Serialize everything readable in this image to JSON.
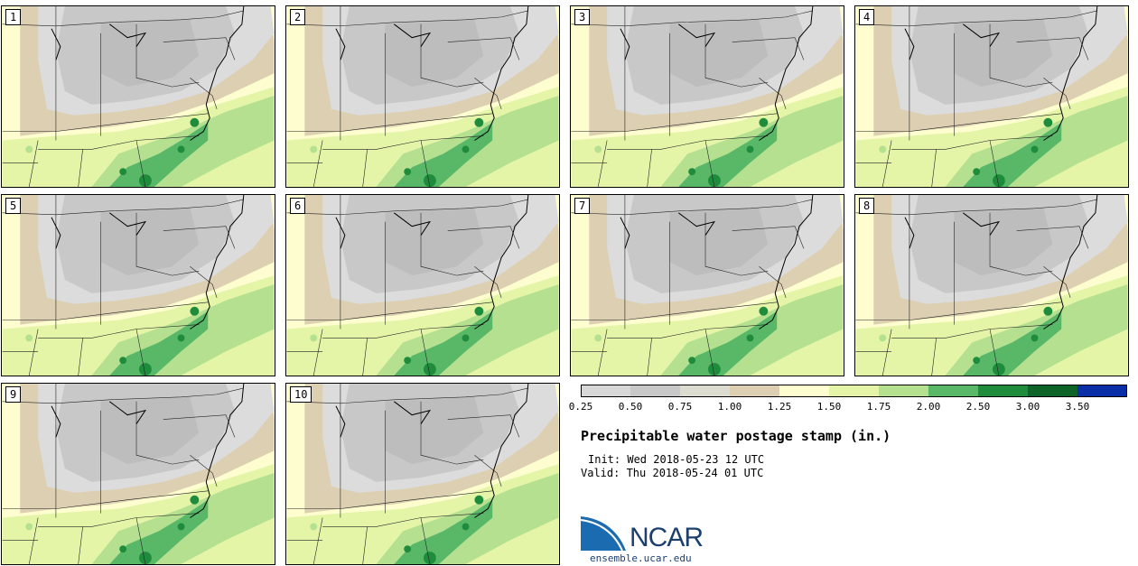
{
  "panels": [
    {
      "label": "1"
    },
    {
      "label": "2"
    },
    {
      "label": "3"
    },
    {
      "label": "4"
    },
    {
      "label": "5"
    },
    {
      "label": "6"
    },
    {
      "label": "7"
    },
    {
      "label": "8"
    },
    {
      "label": "9"
    },
    {
      "label": "10"
    }
  ],
  "colorbar": {
    "ticks": [
      "0.25",
      "0.50",
      "0.75",
      "1.00",
      "1.25",
      "1.50",
      "1.75",
      "2.00",
      "2.50",
      "3.00",
      "3.50"
    ],
    "colors": [
      "#d8d8d8",
      "#c8c8c8",
      "#dcdcd0",
      "#ddcfb1",
      "#fdfdd0",
      "#e4f5a8",
      "#b4e090",
      "#58b868",
      "#1e8c3c",
      "#0e6428",
      "#0a2ea8"
    ]
  },
  "title": "Precipitable water postage stamp (in.)",
  "init": "Init: Wed 2018-05-23 12 UTC",
  "valid": "Valid: Thu 2018-05-24 01 UTC",
  "logo": {
    "text": "NCAR",
    "site": "ensemble.ucar.edu"
  }
}
